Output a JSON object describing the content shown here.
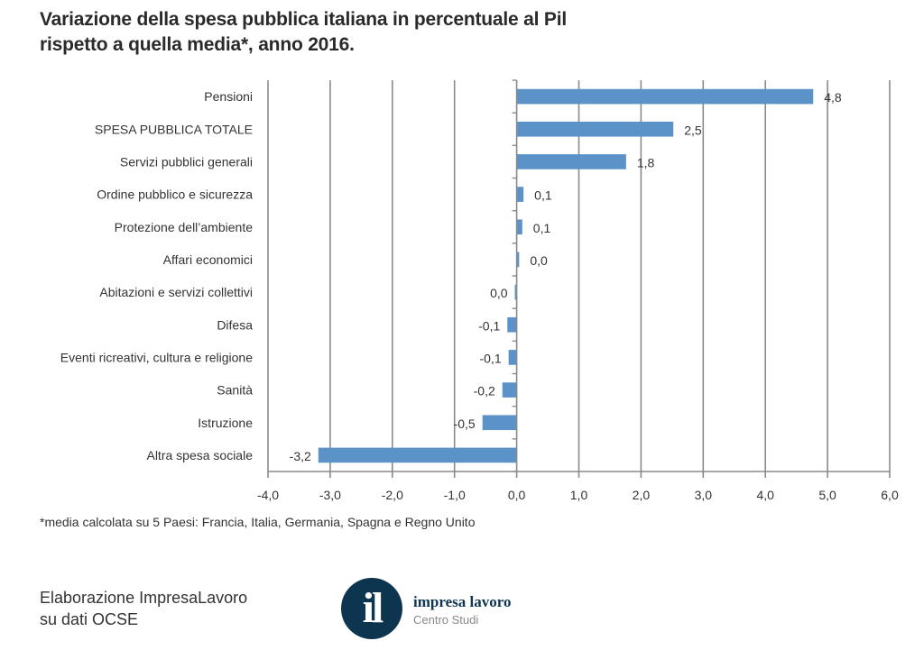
{
  "title": {
    "line1": "Variazione della spesa pubblica italiana in percentuale al Pil",
    "line2": "rispetto a quella media*, anno 2016."
  },
  "footnote": "*media calcolata su 5 Paesi: Francia, Italia, Germania, Spagna e Regno Unito",
  "credit": {
    "line1": "Elaborazione ImpresaLavoro",
    "line2": "su dati OCSE"
  },
  "logo": {
    "glyph": "il",
    "name": "impresa lavoro",
    "subtitle": "Centro Studi"
  },
  "chart_data": {
    "type": "bar",
    "orientation": "horizontal",
    "title": "Variazione della spesa pubblica italiana in percentuale al Pil rispetto a quella media*, anno 2016.",
    "xlabel": "",
    "ylabel": "",
    "xlim": [
      -4,
      6
    ],
    "x_ticks": [
      -4,
      -3,
      -2,
      -1,
      0,
      1,
      2,
      3,
      4,
      5,
      6
    ],
    "x_tick_labels": [
      "-4,0",
      "-3,0",
      "-2,0",
      "-1,0",
      "0,0",
      "1,0",
      "2,0",
      "3,0",
      "4,0",
      "5,0",
      "6,0"
    ],
    "grid": "vertical",
    "bar_color": "#5b93c9",
    "categories": [
      "Pensioni",
      "SPESA PUBBLICA TOTALE",
      "Servizi pubblici generali",
      "Ordine pubblico e sicurezza",
      "Protezione dell’ambiente",
      "Affari economici",
      "Abitazioni e servizi collettivi",
      "Difesa",
      "Eventi ricreativi, cultura e religione",
      "Sanità",
      "Istruzione",
      "Altra spesa sociale"
    ],
    "values": [
      4.77,
      2.52,
      1.76,
      0.11,
      0.09,
      0.04,
      -0.03,
      -0.15,
      -0.13,
      -0.23,
      -0.55,
      -3.19
    ],
    "data_labels": [
      "4,8",
      "2,5",
      "1,8",
      "0,1",
      "0,1",
      "0,0",
      "0,0",
      "-0,1",
      "-0,1",
      "-0,2",
      "-0,5",
      "-3,2"
    ]
  }
}
